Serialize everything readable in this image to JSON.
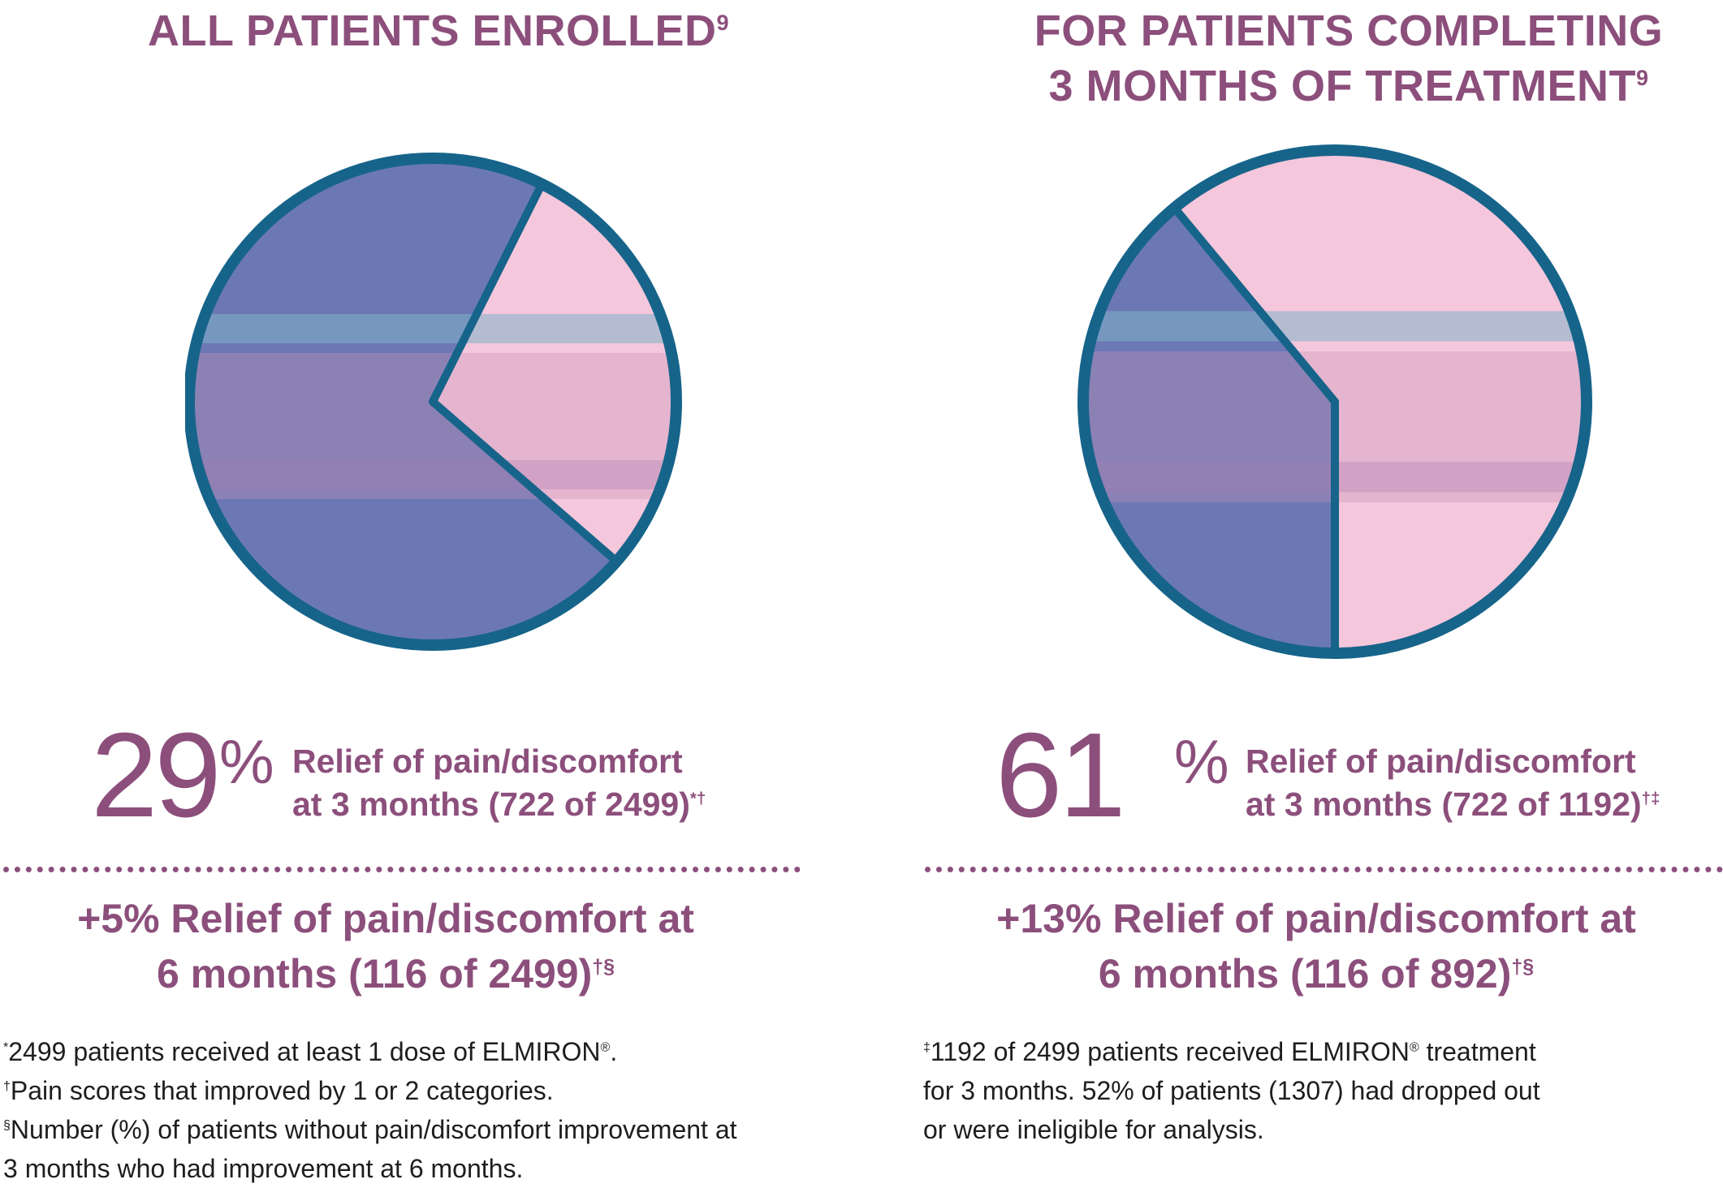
{
  "colors": {
    "title": "#8c4f7c",
    "ring": "#17648a",
    "untreated_tissue": "#6c78b4",
    "relieved_tissue": "#f5c7dc",
    "footnote_text": "#1e1e1e"
  },
  "panels": [
    {
      "title": {
        "main": "ALL PATIENTS ENROLLED",
        "sup": "9"
      },
      "stat": {
        "value": "29",
        "unit": "%",
        "line1": "Relief of pain/discomfort",
        "line2": "at 3 months (722 of 2499)",
        "sup": "*†"
      },
      "followup": {
        "line1": "+5% Relief of pain/discomfort at",
        "line2": "6 months (116 of 2499)",
        "sup": "†§"
      },
      "footnotes": [
        {
          "mark": "*",
          "text": "2499 patients received at least 1 dose of ELMIRON",
          "reg": "®",
          "tail": "."
        },
        {
          "mark": "†",
          "text": "Pain scores that improved by 1 or 2 categories.",
          "reg": "",
          "tail": ""
        },
        {
          "mark": "§",
          "text": "Number (%) of patients without pain/discomfort improvement at",
          "reg": "",
          "tail": ""
        },
        {
          "mark": "",
          "text": "3 months who had improvement at 6 months.",
          "reg": "",
          "tail": ""
        }
      ]
    },
    {
      "title": {
        "line1": "FOR PATIENTS COMPLETING",
        "main": "3 MONTHS OF TREATMENT",
        "sup": "9"
      },
      "stat": {
        "value": "61",
        "unit": "%",
        "line1": "Relief of pain/discomfort",
        "line2": "at 3 months (722 of 1192)",
        "sup": "†‡"
      },
      "followup": {
        "line1": "+13% Relief of pain/discomfort at",
        "line2": "6 months (116 of 892)",
        "sup": "†§"
      },
      "footnotes": [
        {
          "mark": "‡",
          "text": "1192 of 2499 patients received ELMIRON",
          "reg": "®",
          "tail": " treatment"
        },
        {
          "mark": "",
          "text": "for 3 months. 52% of patients (1307) had dropped out",
          "reg": "",
          "tail": ""
        },
        {
          "mark": "",
          "text": "or were ineligible for analysis.",
          "reg": "",
          "tail": ""
        }
      ]
    }
  ],
  "chart_data": [
    {
      "type": "pie",
      "title": "ALL PATIENTS ENROLLED",
      "slices": [
        {
          "label": "Relief of pain/discomfort at 3 months",
          "value": 29,
          "color": "#f5c7dc"
        },
        {
          "label": "",
          "value": 71,
          "color": "#6c78b4"
        }
      ]
    },
    {
      "type": "pie",
      "title": "FOR PATIENTS COMPLETING 3 MONTHS OF TREATMENT",
      "slices": [
        {
          "label": "Relief of pain/discomfort at 3 months",
          "value": 61,
          "color": "#f5c7dc"
        },
        {
          "label": "",
          "value": 39,
          "color": "#6c78b4"
        }
      ]
    }
  ]
}
